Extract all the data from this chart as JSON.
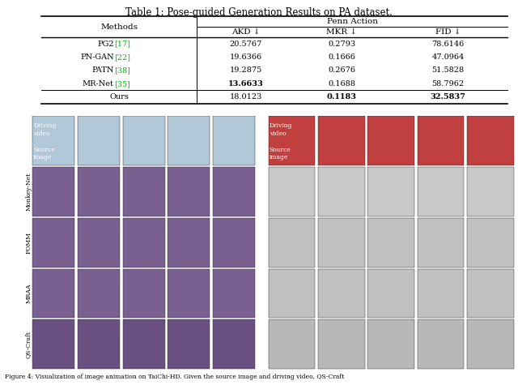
{
  "title": "Table 1: Pose-guided Generation Results on PA dataset.",
  "caption": "Figure 4: Visualization of image animation on TaiChi-HD. Given the source image and driving video, QS-Craft",
  "table": {
    "rows": [
      [
        "PG2",
        "17",
        "20.5767",
        "0.2793",
        "78.6146",
        false,
        false,
        false
      ],
      [
        "PN-GAN",
        "22",
        "19.6366",
        "0.1666",
        "47.0964",
        false,
        false,
        false
      ],
      [
        "PATN",
        "38",
        "19.2875",
        "0.2676",
        "51.5828",
        false,
        false,
        false
      ],
      [
        "MR-Net",
        "35",
        "13.6633",
        "0.1688",
        "58.7962",
        true,
        false,
        false
      ],
      [
        "Ours",
        "",
        "18.0123",
        "0.1183",
        "32.5837",
        false,
        true,
        true
      ]
    ]
  },
  "row_labels": [
    "Monkey-Net",
    "FOMM",
    "MRAA",
    "QS-Craft"
  ],
  "bg_color": "#ffffff",
  "table_line_color": "#000000",
  "green_color": "#00bb00",
  "left_row_colors": [
    "#b0c8d8",
    "#7a6090",
    "#7a6090",
    "#7a6090",
    "#6a5080"
  ],
  "right_row_colors": [
    "#c04040",
    "#c8c8c8",
    "#c0c0c0",
    "#c0c0c0",
    "#b8b8b8"
  ]
}
